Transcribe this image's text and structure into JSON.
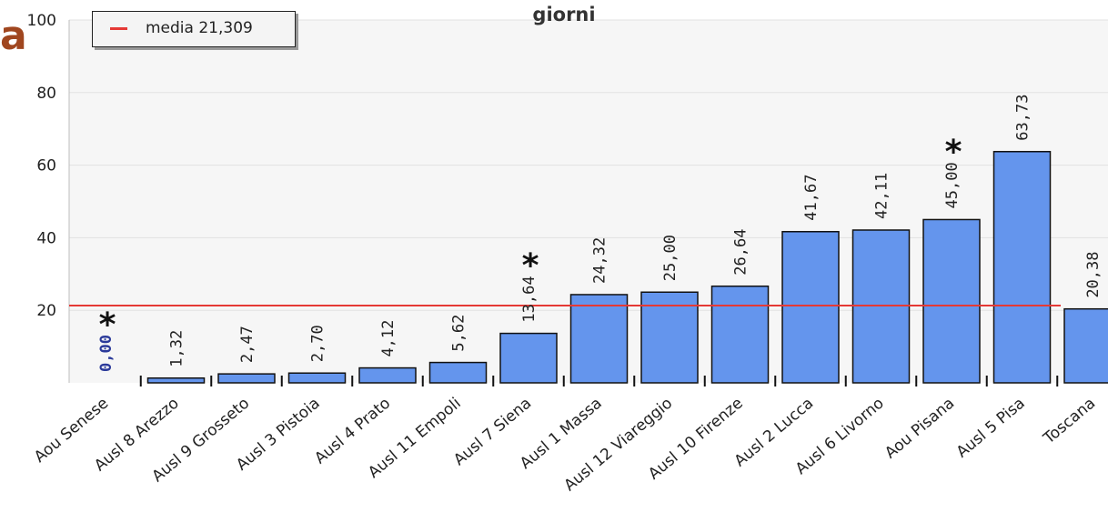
{
  "corner_letter": "a",
  "colors": {
    "bar_fill": "#6495ed",
    "bar_stroke": "#111111",
    "mean_line": "#e53935",
    "grid": "#e2e2e2",
    "plot_bg": "#f6f6f6",
    "zero_label": "#2b3a9a",
    "corner_letter": "#a0461f"
  },
  "legend": {
    "label": "media 21,309"
  },
  "chart_data": {
    "type": "bar",
    "title": "giorni",
    "xlabel": "",
    "ylabel": "",
    "ylim": [
      0,
      100
    ],
    "yticks": [
      20,
      40,
      60,
      80,
      100
    ],
    "ytick_labels": [
      "20",
      "40",
      "60",
      "80",
      "100"
    ],
    "grid": true,
    "legend_position": "top-left",
    "categories": [
      "Aou Senese",
      "Ausl 8 Arezzo",
      "Ausl 9 Grosseto",
      "Ausl 3 Pistoia",
      "Ausl 4 Prato",
      "Ausl 11 Empoli",
      "Ausl 7 Siena",
      "Ausl 1 Massa",
      "Ausl 12 Viareggio",
      "Ausl 10 Firenze",
      "Ausl 2 Lucca",
      "Ausl 6 Livorno",
      "Aou Pisana",
      "Ausl 5 Pisa",
      "Toscana"
    ],
    "values": [
      0,
      1.32,
      2.47,
      2.7,
      4.12,
      5.62,
      13.64,
      24.32,
      25.0,
      26.64,
      41.67,
      42.11,
      45.0,
      63.73,
      20.38
    ],
    "value_labels": [
      "0,00",
      "1,32",
      "2,47",
      "2,70",
      "4,12",
      "5,62",
      "13,64",
      "24,32",
      "25,00",
      "26,64",
      "41,67",
      "42,11",
      "45,00",
      "63,73",
      "20,38"
    ],
    "reference_line": {
      "name": "media 21,309",
      "value": 21.309
    },
    "annotations": [
      {
        "text": "*",
        "category": "Aou Senese"
      },
      {
        "text": "*",
        "category": "Ausl 7 Siena"
      },
      {
        "text": "*",
        "category": "Aou Pisana"
      }
    ]
  }
}
